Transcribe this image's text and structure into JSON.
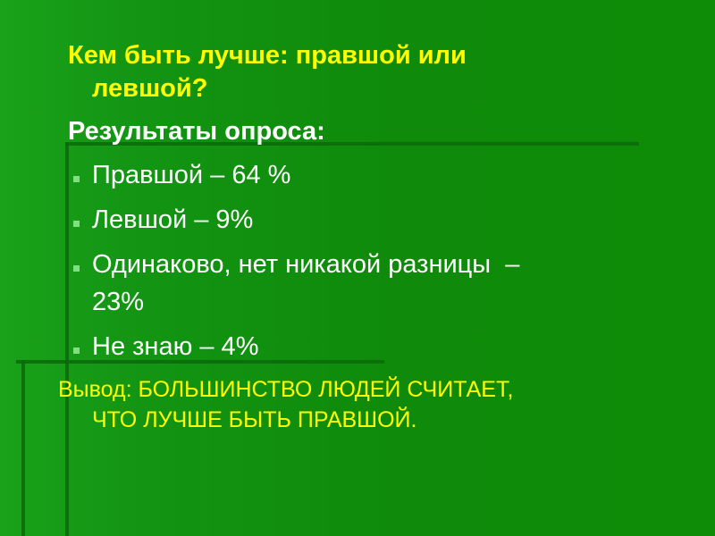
{
  "slide": {
    "title_line1": "Кем быть лучше: правшой или",
    "title_line2": "левшой?",
    "results_heading": "Результаты опроса:",
    "bullets": [
      {
        "text": "Правшой – 64 %"
      },
      {
        "text": "Левшой – 9%"
      },
      {
        "text": "Одинаково, нет никакой разницы  –",
        "text2": "23%"
      },
      {
        "text": "Не знаю – 4%"
      }
    ],
    "conclusion_line1": "Вывод: БОЛЬШИНСТВО ЛЮДЕЙ СЧИТАЕТ,",
    "conclusion_line2": "ЧТО ЛУЧШЕ БЫТЬ ПРАВШОЙ."
  },
  "colors": {
    "background": "#0f8a0a",
    "title": "#ffff00",
    "body_text": "#ffffff",
    "bullet": "#7fe07f"
  }
}
